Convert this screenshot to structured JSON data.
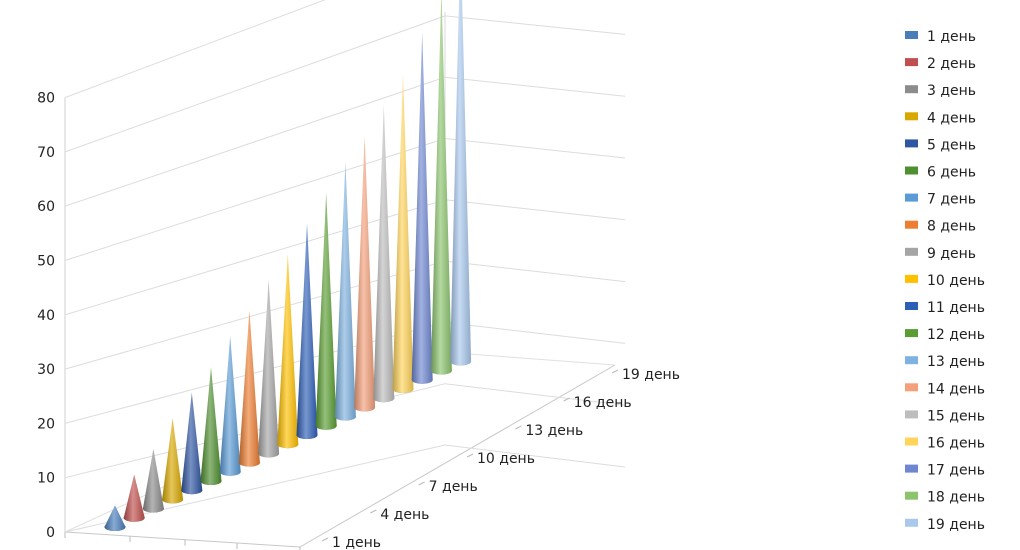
{
  "chart_data": {
    "type": "bar",
    "style": "3d-cone",
    "title": "",
    "xlabel": "",
    "ylabel": "",
    "ylim": [
      0,
      80
    ],
    "y_ticks": [
      "0",
      "10",
      "20",
      "30",
      "40",
      "50",
      "60",
      "70",
      "80"
    ],
    "categories": [
      "1 день",
      "2 день",
      "3 день",
      "4 день",
      "5 день",
      "6 день",
      "7 день",
      "8 день",
      "9 день",
      "10 день",
      "11 день",
      "12 день",
      "13 день",
      "14 день",
      "15 день",
      "16 день",
      "17 день",
      "18 день",
      "19 день"
    ],
    "depth_tick_labels": [
      "1 день",
      "4 день",
      "7 день",
      "10 день",
      "13 день",
      "16 день",
      "19 день"
    ],
    "values": [
      4,
      8,
      11,
      15,
      18,
      21,
      25,
      28,
      32,
      35,
      39,
      43,
      47,
      50,
      54,
      58,
      64,
      70,
      78
    ],
    "grid": true,
    "legend_position": "right",
    "series": [
      {
        "name": "1 день",
        "color": "#4a7ebb"
      },
      {
        "name": "2 день",
        "color": "#c0504d"
      },
      {
        "name": "3 день",
        "color": "#8c8c8c"
      },
      {
        "name": "4 день",
        "color": "#d9a800"
      },
      {
        "name": "5 день",
        "color": "#2f56a3"
      },
      {
        "name": "6 день",
        "color": "#4e8f2f"
      },
      {
        "name": "7 день",
        "color": "#5b9bd5"
      },
      {
        "name": "8 день",
        "color": "#ed7d31"
      },
      {
        "name": "9 день",
        "color": "#a5a5a5"
      },
      {
        "name": "10 день",
        "color": "#ffc000"
      },
      {
        "name": "11 день",
        "color": "#2e5fb7"
      },
      {
        "name": "12 день",
        "color": "#5a9e33"
      },
      {
        "name": "13 день",
        "color": "#7fb2e0"
      },
      {
        "name": "14 день",
        "color": "#f4a07a"
      },
      {
        "name": "15 день",
        "color": "#bdbdbd"
      },
      {
        "name": "16 день",
        "color": "#ffd45a"
      },
      {
        "name": "17 день",
        "color": "#6f87d1"
      },
      {
        "name": "18 день",
        "color": "#8cc46e"
      },
      {
        "name": "19 день",
        "color": "#a9c8ec"
      }
    ]
  }
}
